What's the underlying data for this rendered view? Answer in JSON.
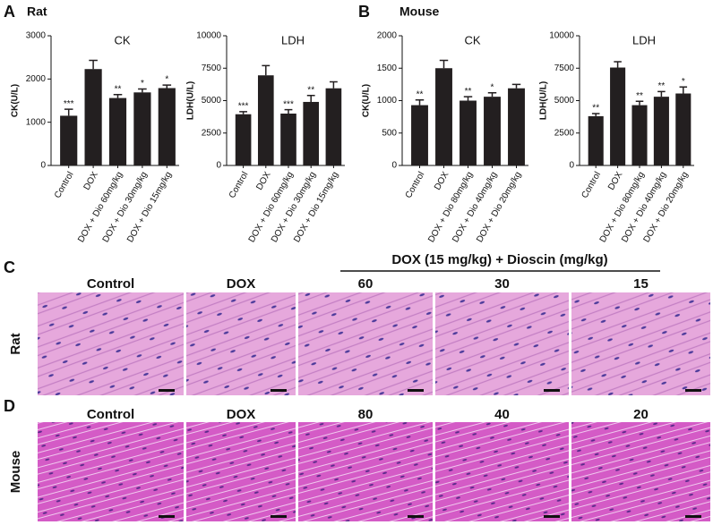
{
  "panels": [
    {
      "letter": "A",
      "label": "Rat"
    },
    {
      "letter": "B",
      "label": "Mouse"
    }
  ],
  "chart_data": [
    {
      "type": "bar",
      "title": "CK",
      "y_label": "CK(U/L)",
      "color": "#231f20",
      "categories": [
        "Control",
        "DOX",
        "DOX + Dio 60mg/kg",
        "DOX + Dio 30mg/kg",
        "DOX + Dio 15mg/kg"
      ],
      "values": [
        1150,
        2230,
        1560,
        1690,
        1790
      ],
      "errors": [
        150,
        200,
        80,
        80,
        70
      ],
      "annotations": [
        "***",
        null,
        "**",
        "*",
        "*"
      ],
      "ylim": [
        0,
        3000
      ],
      "yticks": [
        0,
        1000,
        2000,
        3000
      ]
    },
    {
      "type": "bar",
      "title": "LDH",
      "y_label": "LDH(U/L)",
      "color": "#231f20",
      "categories": [
        "Control",
        "DOX",
        "DOX + Dio 60mg/kg",
        "DOX + Dio 30mg/kg",
        "DOX + Dio 15mg/kg"
      ],
      "values": [
        3950,
        6950,
        4000,
        4900,
        5950
      ],
      "errors": [
        200,
        750,
        300,
        500,
        500
      ],
      "annotations": [
        "***",
        null,
        "***",
        "**",
        null
      ],
      "ylim": [
        0,
        10000
      ],
      "yticks": [
        0,
        2500,
        5000,
        7500,
        10000
      ]
    },
    {
      "type": "bar",
      "title": "CK",
      "y_label": "CK(U/L)",
      "color": "#231f20",
      "categories": [
        "Control",
        "DOX",
        "DOX + Dio 80mg/kg",
        "DOX + Dio 40mg/kg",
        "DOX + Dio 20mg/kg"
      ],
      "values": [
        930,
        1500,
        1000,
        1060,
        1190
      ],
      "errors": [
        80,
        120,
        60,
        60,
        60
      ],
      "annotations": [
        "**",
        null,
        "**",
        "*",
        null
      ],
      "ylim": [
        0,
        2000
      ],
      "yticks": [
        0,
        500,
        1000,
        1500,
        2000
      ]
    },
    {
      "type": "bar",
      "title": "LDH",
      "y_label": "LDH(U/L)",
      "color": "#231f20",
      "categories": [
        "Control",
        "DOX",
        "DOX + Dio 80mg/kg",
        "DOX + Dio 40mg/kg",
        "DOX + Dio 20mg/kg"
      ],
      "values": [
        3800,
        7550,
        4650,
        5300,
        5550
      ],
      "errors": [
        200,
        450,
        300,
        400,
        500
      ],
      "annotations": [
        "**",
        null,
        "**",
        "**",
        "*"
      ],
      "ylim": [
        0,
        10000
      ],
      "yticks": [
        0,
        2500,
        5000,
        7500,
        10000
      ]
    }
  ],
  "histology": {
    "header": "DOX (15 mg/kg) + Dioscin (mg/kg)",
    "rows": [
      {
        "letter": "C",
        "label": "Rat",
        "columns": [
          "Control",
          "DOX",
          "60",
          "30",
          "15"
        ]
      },
      {
        "letter": "D",
        "label": "Mouse",
        "columns": [
          "Control",
          "DOX",
          "80",
          "40",
          "20"
        ]
      }
    ]
  }
}
